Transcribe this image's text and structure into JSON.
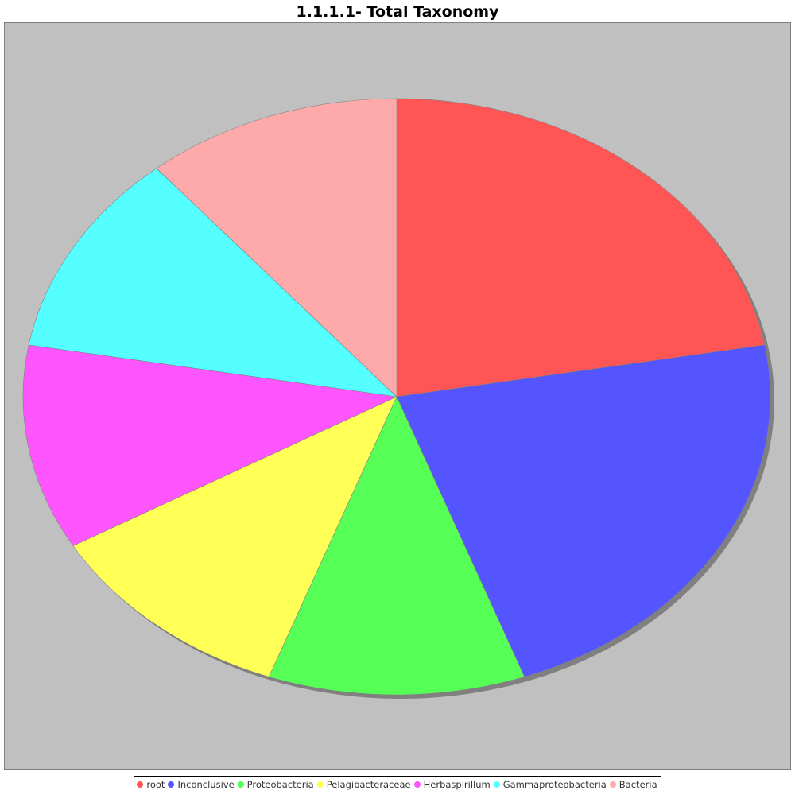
{
  "chart_data": {
    "type": "pie",
    "title": "1.1.1.1- Total Taxonomy",
    "legend_position": "bottom",
    "categories": [
      "root",
      "Inconclusive",
      "Proteobacteria",
      "Pelagibacteraceae",
      "Herbaspirillum",
      "Gammaproteobacteria",
      "Bacteria"
    ],
    "values": [
      2,
      2,
      1,
      1,
      1,
      1,
      1
    ],
    "colors": [
      "#ff5555",
      "#5555ff",
      "#55ff55",
      "#ffff55",
      "#ff55ff",
      "#55ffff",
      "#ffaaaa"
    ]
  }
}
